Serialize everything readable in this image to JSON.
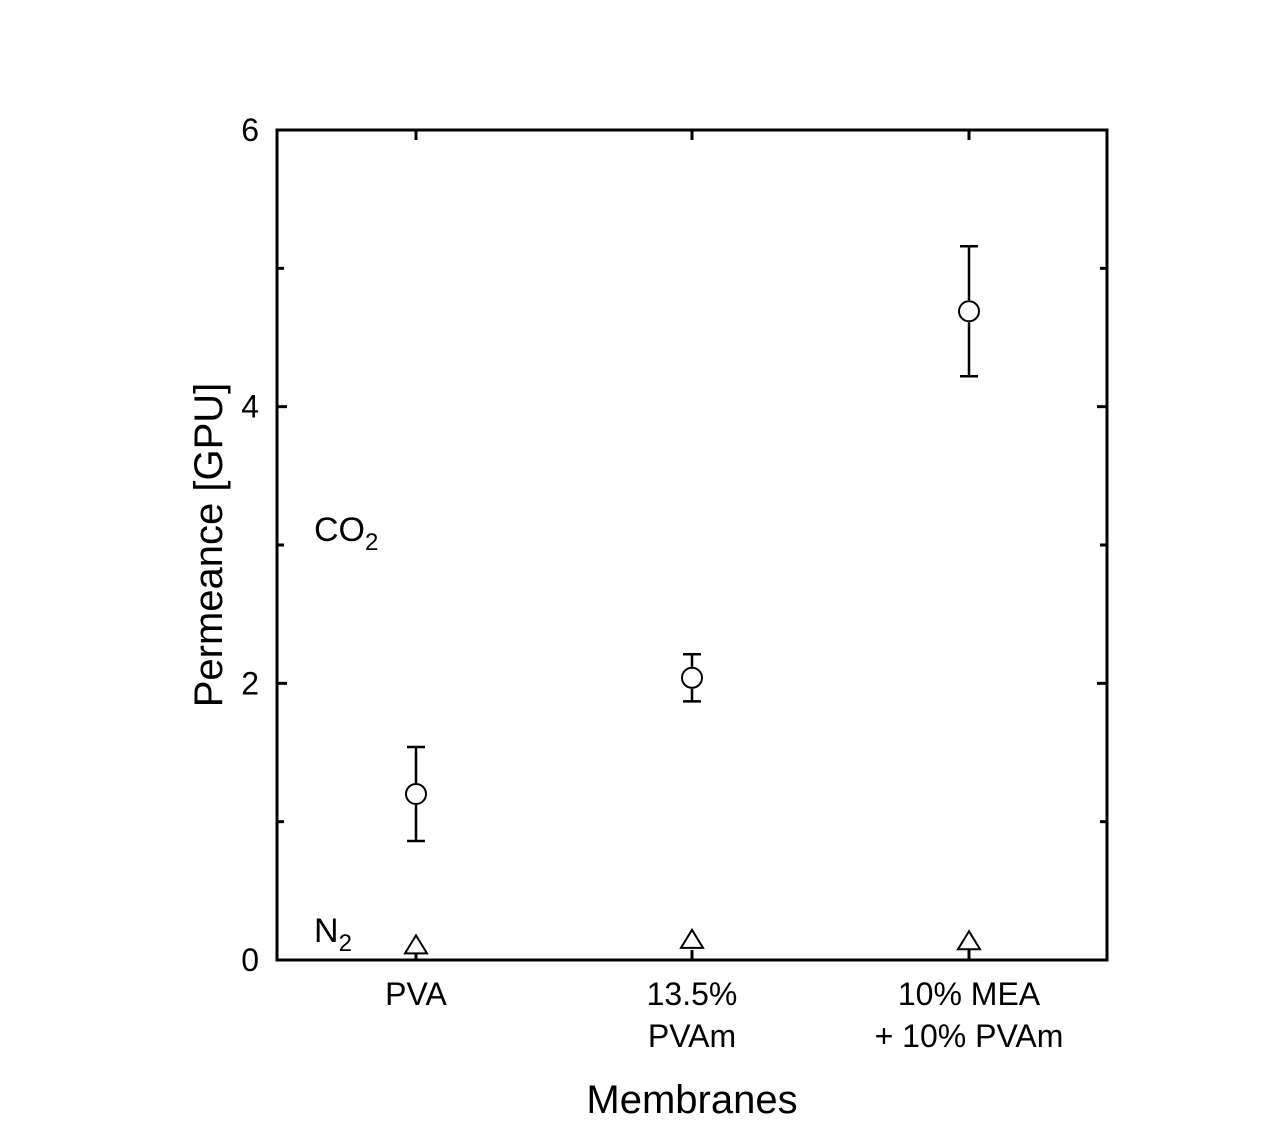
{
  "chart_data": {
    "type": "scatter",
    "title": "",
    "xlabel": "Membranes",
    "ylabel": "Permeance [GPU]",
    "ylim": [
      0,
      6
    ],
    "yticks": [
      0,
      2,
      4,
      6
    ],
    "grid": false,
    "categories": [
      [
        "PVA"
      ],
      [
        "13.5%",
        "PVAm"
      ],
      [
        "10% MEA",
        "+ 10% PVAm"
      ]
    ],
    "series": [
      {
        "name": "CO2",
        "label_main": "CO",
        "label_sub": "2",
        "marker": "circle",
        "values": [
          1.2,
          2.04,
          4.69
        ],
        "errors": [
          0.34,
          0.17,
          0.47
        ]
      },
      {
        "name": "N2",
        "label_main": "N",
        "label_sub": "2",
        "marker": "triangle",
        "values": [
          0.1,
          0.14,
          0.13
        ],
        "errors": [
          0,
          0,
          0
        ]
      }
    ],
    "colors": {
      "axis": "#000000",
      "marker_fill": "#ffffff",
      "marker_stroke": "#000000"
    }
  }
}
